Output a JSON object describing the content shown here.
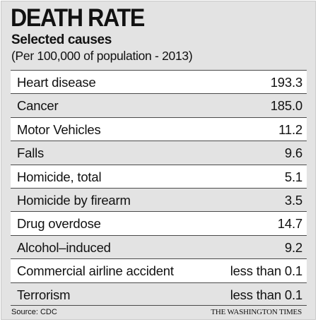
{
  "chart_data": {
    "type": "table",
    "title": "DEATH RATE",
    "subtitle": "Selected causes",
    "note": "(Per 100,000 of population - 2013)",
    "rows": [
      {
        "cause": "Heart disease",
        "value": "193.3"
      },
      {
        "cause": "Cancer",
        "value": "185.0"
      },
      {
        "cause": "Motor Vehicles",
        "value": "11.2"
      },
      {
        "cause": "Falls",
        "value": "9.6"
      },
      {
        "cause": "Homicide, total",
        "value": "5.1"
      },
      {
        "cause": "Homicide by firearm",
        "value": "3.5"
      },
      {
        "cause": "Drug overdose",
        "value": "14.7"
      },
      {
        "cause": "Alcohol–induced",
        "value": "9.2"
      },
      {
        "cause": "Commercial airline accident",
        "value": "less than 0.1"
      },
      {
        "cause": "Terrorism",
        "value": "less than 0.1"
      }
    ]
  },
  "footer": {
    "source": "Source: CDC",
    "credit": "THE WASHINGTON TIMES"
  },
  "colors": {
    "background": "#e3e3e3",
    "shaded_row": "#ffffff",
    "rule": "#4a4a4a",
    "text": "#111111"
  }
}
